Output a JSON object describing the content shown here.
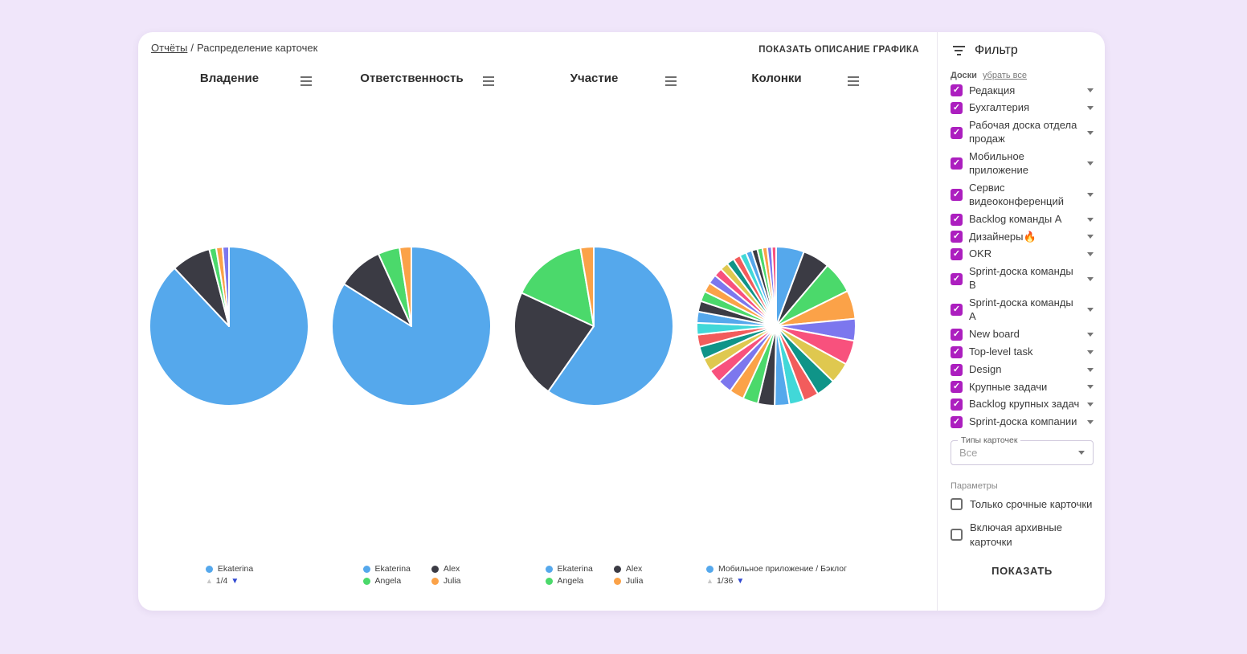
{
  "app": {
    "background": "#F0E6FA",
    "card_background": "#FFFFFF"
  },
  "header": {
    "breadcrumb": {
      "link": "Отчёты",
      "separator": "/",
      "current": "Распределение карточек"
    },
    "show_description_button": "ПОКАЗАТЬ ОПИСАНИЕ ГРАФИКА"
  },
  "icons": {
    "filter_icon": "filter-list",
    "chart_menu_icon": "hamburger-menu",
    "board_caret_icon": "chevron-down",
    "select_caret_icon": "chevron-down",
    "legend_prev_icon": "triangle-up",
    "legend_next_icon": "triangle-down",
    "checkbox_check_icon": "checkmark"
  },
  "colors": {
    "checkbox_accent": "#AC1FBF",
    "pagination_next": "#3149D2",
    "pagination_prev_disabled": "#C8C8C8",
    "pie_blue": "#55A8EC",
    "pie_dark": "#3B3B44",
    "pie_green": "#4BD96B",
    "pie_orange": "#FBA248",
    "pie_purple": "#7C77EE"
  },
  "chart_data": [
    {
      "type": "pie",
      "title": "Владение",
      "values": [
        88,
        8,
        1.4,
        1.3,
        1.3
      ],
      "colors": [
        "#55A8EC",
        "#3B3B44",
        "#4BD96B",
        "#FBA248",
        "#7C77EE"
      ],
      "legend_position": "bottom",
      "legend": [
        {
          "label": "Ekaterina",
          "color": "#55A8EC"
        }
      ],
      "pagination": "1/4"
    },
    {
      "type": "pie",
      "title": "Ответственность",
      "values": [
        83.9,
        9.3,
        4.4,
        2.4
      ],
      "colors": [
        "#55A8EC",
        "#3B3B44",
        "#4BD96B",
        "#FBA248"
      ],
      "legend_position": "bottom",
      "legend": [
        {
          "label": "Ekaterina",
          "color": "#55A8EC"
        },
        {
          "label": "Angela",
          "color": "#4BD96B"
        },
        {
          "label": "Alex",
          "color": "#3B3B44"
        },
        {
          "label": "Julia",
          "color": "#FBA248"
        }
      ],
      "pagination": null
    },
    {
      "type": "pie",
      "title": "Участие",
      "values": [
        59.7,
        22.2,
        15.4,
        2.7
      ],
      "colors": [
        "#55A8EC",
        "#3B3B44",
        "#4BD96B",
        "#FBA248"
      ],
      "legend_position": "bottom",
      "legend": [
        {
          "label": "Ekaterina",
          "color": "#55A8EC"
        },
        {
          "label": "Angela",
          "color": "#4BD96B"
        },
        {
          "label": "Alex",
          "color": "#3B3B44"
        },
        {
          "label": "Julia",
          "color": "#FBA248"
        }
      ],
      "pagination": null
    },
    {
      "type": "pie",
      "title": "Колонки",
      "values": [
        5.5,
        5.3,
        6.3,
        5.6,
        4.3,
        4.8,
        4.2,
        3.8,
        3.0,
        2.9,
        2.9,
        3.3,
        3.0,
        2.9,
        2.8,
        2.7,
        2.6,
        2.5,
        2.4,
        2.3,
        2.2,
        2.1,
        2.0,
        1.9,
        1.8,
        1.7,
        1.6,
        1.5,
        1.4,
        1.3,
        1.2,
        1.1,
        1.0,
        0.95,
        0.9,
        0.85
      ],
      "palette": [
        "#55A8EC",
        "#3B3B44",
        "#4BD96B",
        "#FBA248",
        "#7C77EE",
        "#F8517D",
        "#DFC84F",
        "#0F9488",
        "#F25C5C",
        "#41D8D8"
      ],
      "legend_position": "bottom",
      "legend": [
        {
          "label": "Мобильное приложение / Бэклог",
          "color": "#55A8EC"
        }
      ],
      "pagination": "1/36"
    }
  ],
  "sidebar": {
    "title": "Фильтр",
    "boards_label": "Доски",
    "clear_all": "убрать все",
    "boards": [
      "Редакция",
      "Бухгалтерия",
      "Рабочая доска отдела продаж",
      "Мобильное приложение",
      "Сервис видеоконференций",
      "Backlog команды A",
      "Дизайнеры🔥",
      "OKR",
      "Sprint-доска команды B",
      "Sprint-доска команды A",
      "New board",
      "Top-level task",
      "Design",
      "Крупные задачи",
      "Backlog крупных задач",
      "Sprint-доска компании"
    ],
    "card_types": {
      "label": "Типы карточек",
      "value": "Все"
    },
    "params_label": "Параметры",
    "params": [
      "Только срочные карточки",
      "Включая архивные карточки"
    ],
    "show_button": "ПОКАЗАТЬ"
  }
}
